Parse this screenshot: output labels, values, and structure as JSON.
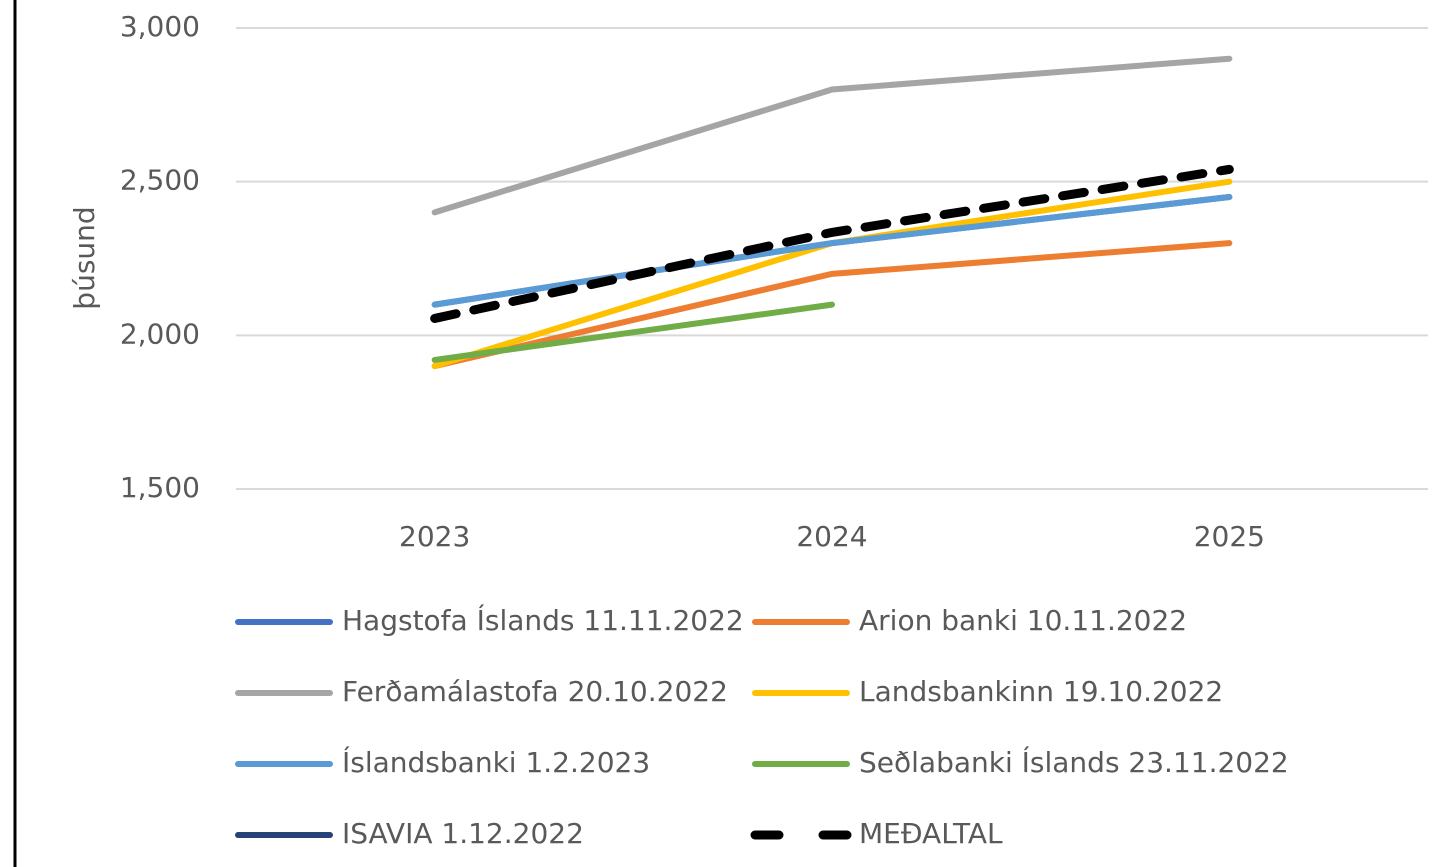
{
  "chart_data": {
    "type": "line",
    "y_label": "þúsund",
    "categories": [
      "2023",
      "2024",
      "2025"
    ],
    "ylim": [
      1500,
      3000
    ],
    "yticks": [
      {
        "value": 1500,
        "label": "1,500"
      },
      {
        "value": 2000,
        "label": "2,000"
      },
      {
        "value": 2500,
        "label": "2,500"
      },
      {
        "value": 3000,
        "label": "3,000"
      }
    ],
    "grid": true,
    "series": [
      {
        "name": "Hagstofa Íslands 11.11.2022",
        "color": "#4472c4",
        "values": [
          2100,
          2300,
          2450
        ]
      },
      {
        "name": "Arion banki 10.11.2022",
        "color": "#ed7d31",
        "values": [
          1900,
          2200,
          2300
        ]
      },
      {
        "name": "Ferðamálastofa 20.10.2022",
        "color": "#a5a5a5",
        "values": [
          2400,
          2800,
          2900
        ]
      },
      {
        "name": "Landsbankinn 19.10.2022",
        "color": "#ffc000",
        "values": [
          1900,
          2300,
          2500
        ]
      },
      {
        "name": "Íslandsbanki 1.2.2023",
        "color": "#5b9bd5",
        "values": [
          2100,
          2300,
          2450
        ]
      },
      {
        "name": "Seðlabanki Íslands 23.11.2022",
        "color": "#70ad47",
        "values": [
          1920,
          2100,
          null
        ]
      },
      {
        "name": "ISAVIA 1.12.2022",
        "color": "#264478",
        "values": [
          null,
          null,
          null
        ]
      },
      {
        "name": "MEÐALTAL",
        "color": "#000000",
        "dashed": true,
        "values": [
          2055,
          2335,
          2540
        ]
      }
    ]
  }
}
